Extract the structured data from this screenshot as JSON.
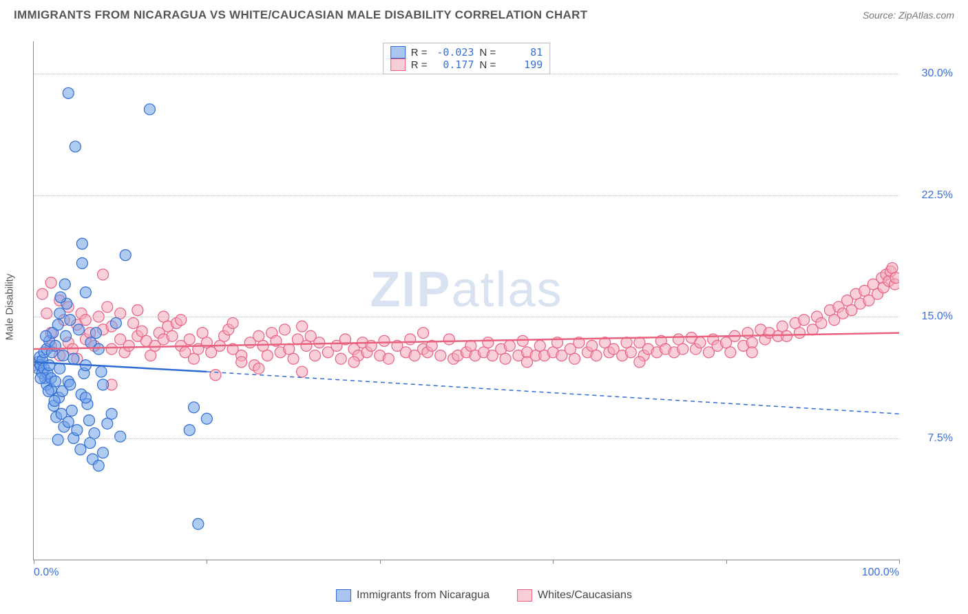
{
  "header": {
    "title": "IMMIGRANTS FROM NICARAGUA VS WHITE/CAUCASIAN MALE DISABILITY CORRELATION CHART",
    "source_prefix": "Source: ",
    "source_name": "ZipAtlas.com"
  },
  "chart": {
    "type": "scatter",
    "background_color": "#ffffff",
    "grid_color": "#bbbbbb",
    "axis_color": "#888888",
    "ylabel": "Male Disability",
    "ylabel_fontsize": 15,
    "xlim": [
      0,
      100
    ],
    "ylim": [
      0,
      32
    ],
    "x_tick_positions": [
      0,
      20,
      40,
      60,
      80,
      100
    ],
    "x_tick_labels_shown": {
      "0": "0.0%",
      "100": "100.0%"
    },
    "y_ticks": [
      7.5,
      15.0,
      22.5,
      30.0
    ],
    "y_tick_labels": [
      "7.5%",
      "15.0%",
      "22.5%",
      "30.0%"
    ],
    "tick_label_color": "#3b6fd6",
    "watermark": "ZIPatlas",
    "marker_radius": 8,
    "marker_opacity": 0.55,
    "series": [
      {
        "name": "Immigrants from Nicaragua",
        "short": "blue",
        "fill": "#6fa0e8",
        "stroke": "#2f6bd4",
        "R": "-0.023",
        "N": "81",
        "trend_solid": {
          "x1": 0,
          "y1": 12.2,
          "x2": 20,
          "y2": 11.6
        },
        "trend_dashed": {
          "x1": 20,
          "y1": 11.6,
          "x2": 100,
          "y2": 9.0
        },
        "points": [
          [
            0,
            12
          ],
          [
            0.5,
            12.2
          ],
          [
            0.5,
            11.8
          ],
          [
            0.7,
            12.5
          ],
          [
            0.8,
            12
          ],
          [
            1,
            11.5
          ],
          [
            1,
            12.3
          ],
          [
            1.2,
            11.8
          ],
          [
            1.2,
            12.8
          ],
          [
            1.3,
            11.2
          ],
          [
            1.5,
            13
          ],
          [
            1.5,
            10.8
          ],
          [
            1.6,
            11.5
          ],
          [
            1.8,
            12
          ],
          [
            1.8,
            13.5
          ],
          [
            2,
            10.5
          ],
          [
            2,
            11.2
          ],
          [
            2.1,
            12.8
          ],
          [
            2.2,
            14
          ],
          [
            2.3,
            9.5
          ],
          [
            2.5,
            11
          ],
          [
            2.5,
            13.2
          ],
          [
            2.6,
            8.8
          ],
          [
            2.8,
            14.5
          ],
          [
            2.9,
            10
          ],
          [
            3,
            11.8
          ],
          [
            3,
            15.2
          ],
          [
            3.2,
            9
          ],
          [
            3.3,
            10.4
          ],
          [
            3.4,
            12.6
          ],
          [
            3.5,
            8.2
          ],
          [
            3.6,
            17
          ],
          [
            3.7,
            13.8
          ],
          [
            4,
            11
          ],
          [
            4,
            8.5
          ],
          [
            4.2,
            14.8
          ],
          [
            4,
            28.8
          ],
          [
            4.4,
            9.2
          ],
          [
            4.6,
            7.5
          ],
          [
            5,
            8
          ],
          [
            5.2,
            14.2
          ],
          [
            5.5,
            10.2
          ],
          [
            5.6,
            18.3
          ],
          [
            5.8,
            11.5
          ],
          [
            6,
            16.5
          ],
          [
            6,
            12
          ],
          [
            6.2,
            9.6
          ],
          [
            6.5,
            7.2
          ],
          [
            7,
            7.8
          ],
          [
            7.2,
            14
          ],
          [
            8.5,
            8.4
          ],
          [
            9,
            9
          ],
          [
            4.8,
            25.5
          ],
          [
            9.5,
            14.6
          ],
          [
            10,
            7.6
          ],
          [
            10.6,
            18.8
          ],
          [
            13.4,
            27.8
          ],
          [
            6.8,
            6.2
          ],
          [
            7.5,
            5.8
          ],
          [
            5.4,
            6.8
          ],
          [
            5.6,
            19.5
          ],
          [
            6.4,
            8.6
          ],
          [
            8,
            10.8
          ],
          [
            7.5,
            13
          ],
          [
            18,
            8
          ],
          [
            20,
            8.7
          ],
          [
            18.5,
            9.4
          ],
          [
            19,
            2.2
          ],
          [
            4.2,
            10.8
          ],
          [
            3.8,
            15.8
          ],
          [
            2.4,
            9.8
          ],
          [
            8,
            6.6
          ],
          [
            3.1,
            16.2
          ],
          [
            4.6,
            12.4
          ],
          [
            1.4,
            13.8
          ],
          [
            0.8,
            11.2
          ],
          [
            2.8,
            7.4
          ],
          [
            6,
            10
          ],
          [
            1.7,
            10.4
          ],
          [
            7.8,
            11.6
          ],
          [
            6.6,
            13.4
          ]
        ]
      },
      {
        "name": "Whites/Caucasians",
        "short": "pink",
        "fill": "#f4a9bb",
        "stroke": "#e9607f",
        "R": "0.177",
        "N": "199",
        "trend_solid": {
          "x1": 0,
          "y1": 13.0,
          "x2": 100,
          "y2": 14.0
        },
        "trend_dashed": null,
        "points": [
          [
            1,
            16.4
          ],
          [
            1.5,
            15.2
          ],
          [
            2,
            14
          ],
          [
            2,
            17.1
          ],
          [
            2,
            13.2
          ],
          [
            3,
            16
          ],
          [
            3,
            12.6
          ],
          [
            3.5,
            14.8
          ],
          [
            4,
            13.4
          ],
          [
            4,
            15.6
          ],
          [
            4.5,
            13
          ],
          [
            5,
            14.5
          ],
          [
            5,
            12.4
          ],
          [
            5.5,
            15.2
          ],
          [
            6,
            13.6
          ],
          [
            6,
            14.8
          ],
          [
            6.5,
            14
          ],
          [
            7,
            13.2
          ],
          [
            7.5,
            15
          ],
          [
            8,
            14.2
          ],
          [
            8,
            17.6
          ],
          [
            8.5,
            15.6
          ],
          [
            9,
            14.4
          ],
          [
            9,
            13
          ],
          [
            10,
            15.2
          ],
          [
            10,
            13.6
          ],
          [
            10.5,
            12.8
          ],
          [
            11,
            13.2
          ],
          [
            11.5,
            14.6
          ],
          [
            12,
            13.8
          ],
          [
            12,
            15.4
          ],
          [
            12.5,
            14.1
          ],
          [
            13,
            13.5
          ],
          [
            13.5,
            12.6
          ],
          [
            14,
            13.2
          ],
          [
            14.5,
            14
          ],
          [
            15,
            13.6
          ],
          [
            15,
            15
          ],
          [
            15.5,
            14.4
          ],
          [
            16,
            13.8
          ],
          [
            16.5,
            14.6
          ],
          [
            17,
            13.2
          ],
          [
            17.5,
            12.8
          ],
          [
            18,
            13.6
          ],
          [
            18.5,
            12.4
          ],
          [
            19,
            13
          ],
          [
            19.5,
            14
          ],
          [
            20,
            13.4
          ],
          [
            20.5,
            12.8
          ],
          [
            21,
            11.4
          ],
          [
            21.5,
            13.2
          ],
          [
            22,
            13.8
          ],
          [
            22.5,
            14.2
          ],
          [
            23,
            13
          ],
          [
            24,
            12.6
          ],
          [
            24,
            12.2
          ],
          [
            25,
            13.4
          ],
          [
            25.5,
            12
          ],
          [
            26,
            13.8
          ],
          [
            26.5,
            13.2
          ],
          [
            27,
            12.6
          ],
          [
            27.5,
            14
          ],
          [
            28,
            13.5
          ],
          [
            28.5,
            12.8
          ],
          [
            29,
            14.2
          ],
          [
            29.5,
            13
          ],
          [
            30,
            12.4
          ],
          [
            30.5,
            13.6
          ],
          [
            31,
            11.6
          ],
          [
            31.5,
            13.2
          ],
          [
            32,
            13.8
          ],
          [
            32.5,
            12.6
          ],
          [
            33,
            13.4
          ],
          [
            34,
            12.8
          ],
          [
            35,
            13.2
          ],
          [
            35.5,
            12.4
          ],
          [
            36,
            13.6
          ],
          [
            37,
            13
          ],
          [
            37.5,
            12.6
          ],
          [
            38,
            13.4
          ],
          [
            38.5,
            12.8
          ],
          [
            39,
            13.2
          ],
          [
            40,
            12.6
          ],
          [
            40.5,
            13.5
          ],
          [
            41,
            12.4
          ],
          [
            42,
            13.2
          ],
          [
            43,
            12.8
          ],
          [
            43.5,
            13.6
          ],
          [
            44,
            12.6
          ],
          [
            45,
            13
          ],
          [
            45.5,
            12.8
          ],
          [
            46,
            13.2
          ],
          [
            47,
            12.6
          ],
          [
            48,
            13.6
          ],
          [
            48.5,
            12.4
          ],
          [
            49,
            12.6
          ],
          [
            50,
            12.8
          ],
          [
            50.5,
            13.2
          ],
          [
            51,
            12.6
          ],
          [
            52,
            12.8
          ],
          [
            52.5,
            13.4
          ],
          [
            53,
            12.6
          ],
          [
            54,
            13
          ],
          [
            54.5,
            12.4
          ],
          [
            55,
            13.2
          ],
          [
            56,
            12.6
          ],
          [
            56.5,
            13.5
          ],
          [
            57,
            12.8
          ],
          [
            58,
            12.6
          ],
          [
            58.5,
            13.2
          ],
          [
            59,
            12.6
          ],
          [
            60,
            12.8
          ],
          [
            60.5,
            13.4
          ],
          [
            61,
            12.6
          ],
          [
            62,
            13
          ],
          [
            62.5,
            12.4
          ],
          [
            63,
            13.4
          ],
          [
            64,
            12.8
          ],
          [
            64.5,
            13.2
          ],
          [
            65,
            12.6
          ],
          [
            66,
            13.4
          ],
          [
            66.5,
            12.8
          ],
          [
            67,
            13
          ],
          [
            68,
            12.6
          ],
          [
            68.5,
            13.4
          ],
          [
            69,
            12.8
          ],
          [
            70,
            13.4
          ],
          [
            70.5,
            12.6
          ],
          [
            71,
            13
          ],
          [
            72,
            12.8
          ],
          [
            72.5,
            13.5
          ],
          [
            73,
            13
          ],
          [
            74,
            12.8
          ],
          [
            74.5,
            13.6
          ],
          [
            75,
            13
          ],
          [
            76,
            13.7
          ],
          [
            76.5,
            13
          ],
          [
            77,
            13.4
          ],
          [
            78,
            12.8
          ],
          [
            78.5,
            13.6
          ],
          [
            79,
            13.2
          ],
          [
            80,
            13.4
          ],
          [
            80.5,
            12.8
          ],
          [
            81,
            13.8
          ],
          [
            82,
            13.2
          ],
          [
            82.5,
            14
          ],
          [
            83,
            13.4
          ],
          [
            84,
            14.2
          ],
          [
            84.5,
            13.6
          ],
          [
            85,
            14
          ],
          [
            86,
            13.8
          ],
          [
            86.5,
            14.4
          ],
          [
            87,
            13.8
          ],
          [
            88,
            14.6
          ],
          [
            88.5,
            14
          ],
          [
            89,
            14.8
          ],
          [
            90,
            14.2
          ],
          [
            90.5,
            15
          ],
          [
            91,
            14.6
          ],
          [
            92,
            15.4
          ],
          [
            92.5,
            14.8
          ],
          [
            93,
            15.6
          ],
          [
            93.5,
            15.2
          ],
          [
            94,
            16
          ],
          [
            94.5,
            15.4
          ],
          [
            95,
            16.4
          ],
          [
            95.5,
            15.8
          ],
          [
            96,
            16.6
          ],
          [
            96.5,
            16
          ],
          [
            97,
            17
          ],
          [
            97.5,
            16.4
          ],
          [
            98,
            17.4
          ],
          [
            98.2,
            16.8
          ],
          [
            98.5,
            17.6
          ],
          [
            98.8,
            17.2
          ],
          [
            99,
            17.8
          ],
          [
            99.2,
            18
          ],
          [
            99.5,
            17
          ],
          [
            99.6,
            17.4
          ],
          [
            9,
            10.8
          ],
          [
            17,
            14.8
          ],
          [
            23,
            14.6
          ],
          [
            26,
            11.8
          ],
          [
            31,
            14.4
          ],
          [
            37,
            12.2
          ],
          [
            45,
            14
          ],
          [
            57,
            12.2
          ],
          [
            70,
            12.2
          ],
          [
            83,
            12.8
          ]
        ]
      }
    ]
  },
  "legend_bottom": [
    {
      "label": "Immigrants from Nicaragua",
      "fill": "#a9c5f0",
      "border": "#2f6bd4"
    },
    {
      "label": "Whites/Caucasians",
      "fill": "#f7cdd7",
      "border": "#e9607f"
    }
  ],
  "legend_top_swatches": [
    {
      "fill": "#a9c5f0",
      "border": "#2f6bd4"
    },
    {
      "fill": "#f7cdd7",
      "border": "#e9607f"
    }
  ],
  "labels": {
    "R": "R =",
    "N": "N ="
  }
}
